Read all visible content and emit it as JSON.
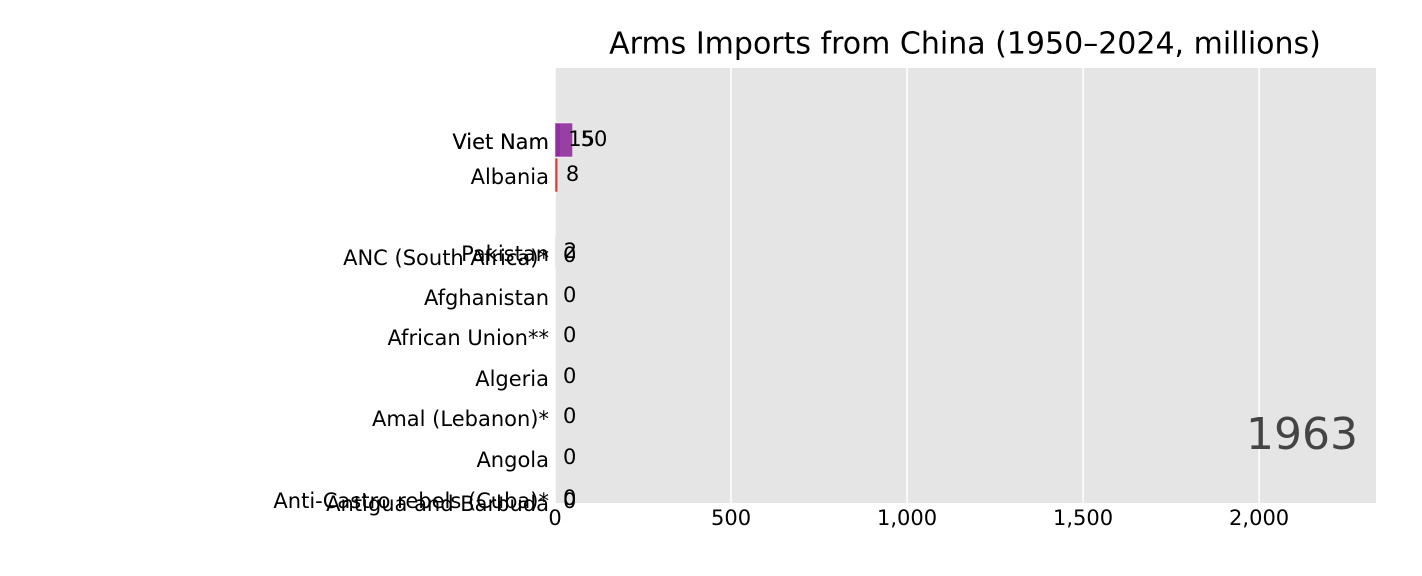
{
  "chart_data": {
    "type": "bar",
    "orientation": "horizontal",
    "title": "Arms Imports from China (1950–2024, millions)",
    "annotation": "1963",
    "categories": [
      "Viet Nam",
      "Viet Nam",
      "Albania",
      "Pakistan",
      "ANC (South Africa)*",
      "Afghanistan",
      "African Union**",
      "Algeria",
      "Amal (Lebanon)*",
      "Angola",
      "Anti-Castro rebels (Cuba)*",
      "Antigua and Barbuda"
    ],
    "values": [
      15,
      50,
      8,
      2,
      0,
      0,
      0,
      0,
      0,
      0,
      0,
      0
    ],
    "colors": [
      "#8e2c9c",
      "#8e2c9c",
      "#d62728",
      "#9c9ede",
      "#aaaaaa",
      "#aaaaaa",
      "#aaaaaa",
      "#aaaaaa",
      "#aaaaaa",
      "#aaaaaa",
      "#aaaaaa",
      "#aaaaaa"
    ],
    "xlim": [
      0,
      2332
    ],
    "xticks": [
      0,
      500,
      {
        "value": 1000,
        "label": "1,000"
      },
      {
        "value": 1500,
        "label": "1,500"
      },
      {
        "value": 2000,
        "label": "2,000"
      }
    ],
    "grid": true
  }
}
